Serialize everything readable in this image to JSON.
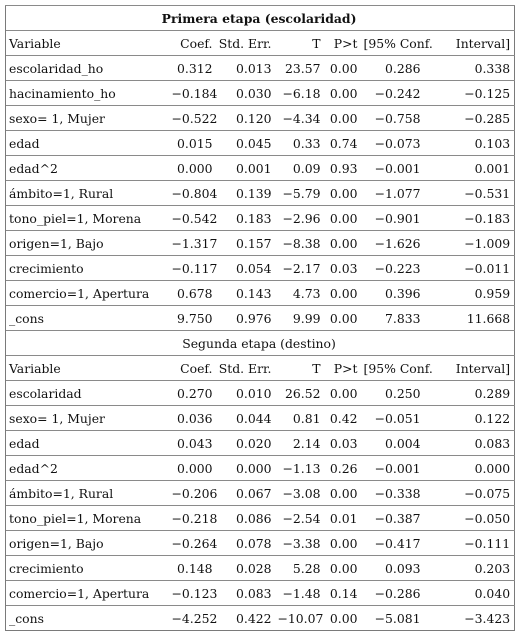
{
  "headers": [
    "Variable",
    "Coef.",
    "Std. Err.",
    "T",
    "P>t",
    "[95% Conf.",
    "Interval]"
  ],
  "panels": [
    {
      "title": "Primera etapa (escolaridad)",
      "rows": [
        [
          "escolaridad_ho",
          "0.312",
          "0.013",
          "23.57",
          "0.00",
          "0.286",
          "0.338"
        ],
        [
          "hacinamiento_ho",
          "−0.184",
          "0.030",
          "−6.18",
          "0.00",
          "−0.242",
          "−0.125"
        ],
        [
          "sexo= 1, Mujer",
          "−0.522",
          "0.120",
          "−4.34",
          "0.00",
          "−0.758",
          "−0.285"
        ],
        [
          "edad",
          "0.015",
          "0.045",
          "0.33",
          "0.74",
          "−0.073",
          "0.103"
        ],
        [
          "edad^2",
          "0.000",
          "0.001",
          "0.09",
          "0.93",
          "−0.001",
          "0.001"
        ],
        [
          "ámbito=1, Rural",
          "−0.804",
          "0.139",
          "−5.79",
          "0.00",
          "−1.077",
          "−0.531"
        ],
        [
          "tono_piel=1, Morena",
          "−0.542",
          "0.183",
          "−2.96",
          "0.00",
          "−0.901",
          "−0.183"
        ],
        [
          "origen=1, Bajo",
          "−1.317",
          "0.157",
          "−8.38",
          "0.00",
          "−1.626",
          "−1.009"
        ],
        [
          "crecimiento",
          "−0.117",
          "0.054",
          "−2.17",
          "0.03",
          "−0.223",
          "−0.011"
        ],
        [
          "comercio=1, Apertura",
          "0.678",
          "0.143",
          "4.73",
          "0.00",
          "0.396",
          "0.959"
        ],
        [
          "_cons",
          "9.750",
          "0.976",
          "9.99",
          "0.00",
          "7.833",
          "11.668"
        ]
      ]
    },
    {
      "title": "Segunda etapa (destino)",
      "rows": [
        [
          "escolaridad",
          "0.270",
          "0.010",
          "26.52",
          "0.00",
          "0.250",
          "0.289"
        ],
        [
          "sexo= 1, Mujer",
          "0.036",
          "0.044",
          "0.81",
          "0.42",
          "−0.051",
          "0.122"
        ],
        [
          "edad",
          "0.043",
          "0.020",
          "2.14",
          "0.03",
          "0.004",
          "0.083"
        ],
        [
          "edad^2",
          "0.000",
          "0.000",
          "−1.13",
          "0.26",
          "−0.001",
          "0.000"
        ],
        [
          "ámbito=1, Rural",
          "−0.206",
          "0.067",
          "−3.08",
          "0.00",
          "−0.338",
          "−0.075"
        ],
        [
          "tono_piel=1, Morena",
          "−0.218",
          "0.086",
          "−2.54",
          "0.01",
          "−0.387",
          "−0.050"
        ],
        [
          "origen=1, Bajo",
          "−0.264",
          "0.078",
          "−3.38",
          "0.00",
          "−0.417",
          "−0.111"
        ],
        [
          "crecimiento",
          "0.148",
          "0.028",
          "5.28",
          "0.00",
          "0.093",
          "0.203"
        ],
        [
          "comercio=1, Apertura",
          "−0.123",
          "0.083",
          "−1.48",
          "0.14",
          "−0.286",
          "0.040"
        ],
        [
          "_cons",
          "−4.252",
          "0.422",
          "−10.07",
          "0.00",
          "−5.081",
          "−3.423"
        ]
      ]
    }
  ]
}
